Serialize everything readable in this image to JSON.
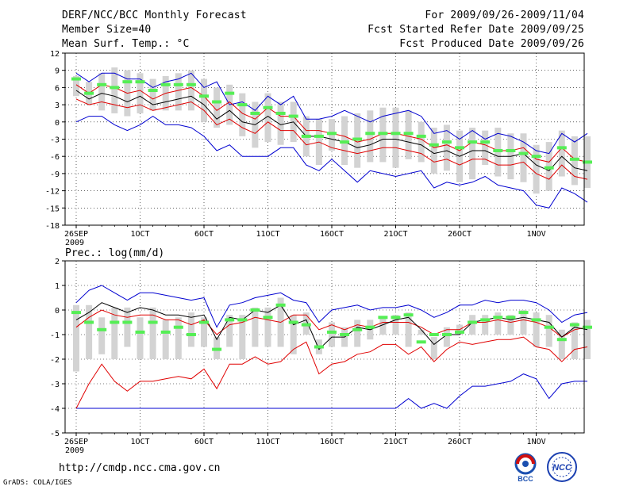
{
  "header": {
    "title": "DERF/NCC/BCC Monthly Forecast",
    "member_size": "Member Size=40",
    "variable": "Mean Surf. Temp.: °C",
    "period": "For 2009/09/26-2009/11/04",
    "started": "Fcst Started Refer Date 2009/09/25",
    "produced": "Fcst Produced Date 2009/09/26"
  },
  "footer": {
    "url": "http://cmdp.ncc.cma.gov.cn",
    "credit": "GrADS: COLA/IGES",
    "logo_bcc": "BCC",
    "logo_ncc": "NCC"
  },
  "colors": {
    "mean": "#000000",
    "spread_red": "#e00000",
    "extreme_blue": "#0000d0",
    "box": "#d3d3d3",
    "median": "#55ee55"
  },
  "chart_data": [
    {
      "type": "line",
      "title": "Mean Surf. Temp.: °C",
      "ylabel": "°C",
      "ylim": [
        -18,
        12
      ],
      "yticks": [
        12,
        9,
        6,
        3,
        0,
        -3,
        -6,
        -9,
        -12,
        -15,
        -18
      ],
      "x_days": 40,
      "xtick_labels": [
        "26SEP",
        "1OCT",
        "6OCT",
        "11OCT",
        "16OCT",
        "21OCT",
        "26OCT",
        "1NOV"
      ],
      "xtick_days": [
        0,
        5,
        10,
        15,
        20,
        25,
        30,
        36
      ],
      "year_label": "2009",
      "grid": true,
      "series": [
        {
          "name": "ensemble-max",
          "color": "blue",
          "values": [
            8.5,
            7.0,
            8.5,
            8.5,
            7.5,
            7.5,
            6.0,
            7.0,
            7.5,
            8.5,
            6.0,
            7.0,
            3.0,
            3.5,
            2.0,
            4.5,
            3.0,
            4.5,
            0.5,
            0.5,
            1.0,
            2.0,
            1.0,
            0.0,
            1.0,
            1.5,
            2.0,
            1.0,
            -2.0,
            -1.5,
            -3.0,
            -1.5,
            -3.0,
            -2.0,
            -2.5,
            -3.5,
            -5.0,
            -5.5,
            -2.0,
            -3.5,
            -2.0
          ]
        },
        {
          "name": "ensemble-min",
          "color": "blue",
          "values": [
            0.0,
            1.0,
            1.0,
            -0.5,
            -1.5,
            -0.5,
            1.0,
            -0.5,
            -0.5,
            -1.0,
            -2.5,
            -5.0,
            -4.0,
            -6.0,
            -6.0,
            -6.0,
            -4.5,
            -4.5,
            -7.5,
            -8.5,
            -6.5,
            -8.5,
            -10.5,
            -8.5,
            -9.0,
            -9.5,
            -9.0,
            -8.5,
            -11.5,
            -10.5,
            -11.0,
            -10.5,
            -9.5,
            -11.0,
            -11.5,
            -12.0,
            -14.5,
            -15.0,
            -11.5,
            -12.5,
            -14.0
          ]
        },
        {
          "name": "spread-upper",
          "color": "red",
          "values": [
            6.5,
            5.0,
            6.5,
            6.0,
            5.0,
            5.5,
            4.0,
            5.0,
            5.5,
            6.0,
            4.5,
            2.0,
            3.5,
            1.5,
            0.5,
            2.5,
            1.0,
            1.0,
            -1.5,
            -1.5,
            -2.0,
            -2.5,
            -3.5,
            -3.0,
            -2.0,
            -2.0,
            -2.5,
            -3.0,
            -4.5,
            -4.0,
            -5.0,
            -3.5,
            -4.0,
            -5.0,
            -5.0,
            -4.5,
            -6.5,
            -7.0,
            -4.5,
            -6.5,
            -7.0
          ]
        },
        {
          "name": "ensemble-mean",
          "color": "black",
          "values": [
            5.5,
            4.0,
            5.0,
            4.5,
            3.5,
            4.5,
            3.0,
            3.5,
            4.0,
            4.5,
            3.0,
            0.5,
            2.0,
            0.0,
            -0.5,
            1.0,
            -0.5,
            0.0,
            -2.5,
            -2.5,
            -3.0,
            -3.5,
            -4.5,
            -4.0,
            -3.0,
            -3.0,
            -3.5,
            -4.0,
            -5.5,
            -5.0,
            -6.0,
            -5.0,
            -5.0,
            -6.0,
            -6.0,
            -5.5,
            -7.5,
            -8.5,
            -6.0,
            -8.0,
            -8.5
          ]
        },
        {
          "name": "spread-lower",
          "color": "red",
          "values": [
            4.0,
            3.0,
            3.5,
            3.0,
            2.5,
            3.0,
            2.0,
            2.5,
            3.0,
            3.5,
            2.0,
            -0.5,
            0.5,
            -1.0,
            -2.0,
            0.0,
            -1.5,
            -1.5,
            -4.0,
            -3.5,
            -4.5,
            -5.0,
            -5.5,
            -5.0,
            -4.5,
            -4.5,
            -5.0,
            -5.5,
            -7.0,
            -6.5,
            -7.5,
            -6.5,
            -6.5,
            -7.5,
            -7.5,
            -7.0,
            -9.0,
            -10.0,
            -7.5,
            -9.5,
            -10.0
          ]
        }
      ],
      "boxes": {
        "top": [
          8.0,
          7.0,
          8.5,
          9.5,
          9.0,
          8.5,
          7.5,
          8.0,
          8.5,
          9.0,
          7.5,
          6.0,
          6.5,
          5.0,
          3.5,
          5.0,
          3.5,
          3.5,
          1.0,
          0.5,
          0.5,
          1.0,
          1.5,
          2.0,
          2.5,
          2.5,
          2.0,
          0.0,
          -1.0,
          -0.5,
          -1.5,
          -1.0,
          -1.5,
          -1.0,
          -2.0,
          -2.0,
          -4.0,
          -3.5,
          -1.5,
          -2.5,
          -2.5
        ],
        "bottom": [
          4.5,
          3.0,
          2.0,
          1.5,
          1.0,
          1.5,
          2.0,
          2.0,
          2.0,
          2.0,
          0.0,
          -1.0,
          -0.5,
          -2.5,
          -4.5,
          -3.5,
          -4.0,
          -3.5,
          -6.0,
          -7.5,
          -5.0,
          -7.5,
          -8.0,
          -7.0,
          -7.0,
          -8.0,
          -6.5,
          -7.0,
          -9.0,
          -8.5,
          -10.5,
          -10.0,
          -7.5,
          -9.5,
          -10.0,
          -10.5,
          -12.5,
          -12.0,
          -9.5,
          -11.0,
          -11.5
        ],
        "median": [
          7.5,
          5.0,
          6.5,
          6.0,
          7.0,
          7.0,
          5.5,
          6.5,
          6.5,
          6.5,
          4.5,
          3.5,
          5.0,
          3.0,
          1.5,
          2.5,
          1.5,
          1.0,
          -2.5,
          -2.5,
          -2.0,
          -3.5,
          -3.0,
          -2.0,
          -2.0,
          -2.0,
          -2.0,
          -2.5,
          -4.0,
          -3.5,
          -4.5,
          -3.5,
          -3.5,
          -5.0,
          -5.0,
          -5.5,
          -6.0,
          -8.0,
          -4.5,
          -6.5,
          -7.0
        ]
      }
    },
    {
      "type": "line",
      "title": "Prec.: log(mm/d)",
      "ylabel": "log(mm/d)",
      "ylim": [
        -5,
        2
      ],
      "yticks": [
        2,
        1,
        0,
        -1,
        -2,
        -3,
        -4,
        -5
      ],
      "x_days": 40,
      "xtick_labels": [
        "26SEP",
        "1OCT",
        "6OCT",
        "11OCT",
        "16OCT",
        "21OCT",
        "26OCT",
        "1NOV"
      ],
      "xtick_days": [
        0,
        5,
        10,
        15,
        20,
        25,
        30,
        36
      ],
      "year_label": "2009",
      "grid": true,
      "series": [
        {
          "name": "ensemble-max",
          "color": "blue",
          "values": [
            0.3,
            0.8,
            1.0,
            0.7,
            0.4,
            0.7,
            0.7,
            0.6,
            0.5,
            0.4,
            0.5,
            -0.7,
            0.2,
            0.3,
            0.5,
            0.6,
            0.7,
            0.4,
            0.3,
            -0.5,
            0.0,
            0.1,
            0.2,
            0.0,
            0.1,
            0.1,
            0.2,
            0.0,
            -0.3,
            -0.1,
            0.2,
            0.2,
            0.4,
            0.3,
            0.4,
            0.4,
            0.3,
            0.0,
            -0.5,
            -0.2,
            -0.1
          ]
        },
        {
          "name": "ensemble-min",
          "color": "blue",
          "values": [
            -4.0,
            -4.0,
            -4.0,
            -4.0,
            -4.0,
            -4.0,
            -4.0,
            -4.0,
            -4.0,
            -4.0,
            -4.0,
            -4.0,
            -4.0,
            -4.0,
            -4.0,
            -4.0,
            -4.0,
            -4.0,
            -4.0,
            -4.0,
            -4.0,
            -4.0,
            -4.0,
            -4.0,
            -4.0,
            -4.0,
            -3.6,
            -4.0,
            -3.8,
            -4.0,
            -3.5,
            -3.1,
            -3.1,
            -3.0,
            -2.9,
            -2.6,
            -2.8,
            -3.6,
            -3.0,
            -2.9,
            -2.9
          ]
        },
        {
          "name": "spread-upper",
          "color": "red",
          "values": [
            -0.7,
            -0.3,
            0.0,
            -0.2,
            -0.3,
            -0.2,
            -0.2,
            -0.4,
            -0.4,
            -0.6,
            -0.4,
            -1.0,
            -0.6,
            -0.5,
            -0.3,
            -0.4,
            -0.5,
            -0.2,
            -0.2,
            -0.8,
            -0.6,
            -0.8,
            -0.6,
            -0.7,
            -0.5,
            -0.5,
            -0.5,
            -0.7,
            -1.0,
            -0.8,
            -0.8,
            -0.5,
            -0.5,
            -0.4,
            -0.5,
            -0.4,
            -0.5,
            -0.7,
            -1.1,
            -0.8,
            -0.7
          ]
        },
        {
          "name": "ensemble-mean",
          "color": "black",
          "values": [
            -0.4,
            -0.1,
            0.3,
            0.1,
            -0.1,
            0.1,
            0.0,
            -0.2,
            -0.2,
            -0.3,
            -0.2,
            -1.2,
            -0.3,
            -0.4,
            0.0,
            -0.1,
            0.2,
            -0.6,
            -0.4,
            -1.6,
            -1.1,
            -1.1,
            -0.7,
            -0.8,
            -0.6,
            -0.4,
            -0.3,
            -0.8,
            -1.4,
            -1.0,
            -1.0,
            -0.5,
            -0.4,
            -0.3,
            -0.4,
            -0.3,
            -0.4,
            -0.5,
            -1.1,
            -0.7,
            -0.8
          ]
        },
        {
          "name": "spread-lower",
          "color": "red",
          "values": [
            -4.0,
            -3.0,
            -2.2,
            -2.9,
            -3.3,
            -2.9,
            -2.9,
            -2.8,
            -2.7,
            -2.8,
            -2.4,
            -3.2,
            -2.2,
            -2.2,
            -1.9,
            -2.2,
            -2.1,
            -1.6,
            -1.3,
            -2.6,
            -2.2,
            -2.1,
            -1.8,
            -1.7,
            -1.4,
            -1.4,
            -1.8,
            -1.5,
            -2.1,
            -1.6,
            -1.3,
            -1.4,
            -1.3,
            -1.2,
            -1.2,
            -1.1,
            -1.5,
            -1.6,
            -2.1,
            -1.6,
            -1.5
          ]
        }
      ],
      "boxes": {
        "top": [
          0.2,
          0.2,
          -0.3,
          0.1,
          0.1,
          -0.3,
          0.1,
          -0.4,
          -0.3,
          -0.1,
          -0.3,
          -1.1,
          -0.2,
          -0.2,
          0.1,
          0.1,
          0.5,
          -0.2,
          -0.1,
          -1.2,
          -0.5,
          -0.7,
          -0.4,
          -0.4,
          -0.3,
          -0.2,
          -0.1,
          -0.8,
          -1.1,
          -0.7,
          -0.6,
          -0.2,
          -0.2,
          -0.1,
          -0.2,
          0.0,
          -0.1,
          -0.2,
          -0.8,
          -0.5,
          -0.4
        ],
        "bottom": [
          -2.5,
          -2.0,
          -1.8,
          -2.0,
          -1.5,
          -2.0,
          -2.0,
          -2.0,
          -2.0,
          -1.5,
          -1.5,
          -2.0,
          -1.5,
          -2.0,
          -1.5,
          -1.5,
          -1.5,
          -1.8,
          -1.0,
          -1.8,
          -1.5,
          -1.5,
          -1.5,
          -1.2,
          -1.0,
          -1.0,
          -1.5,
          -1.0,
          -2.0,
          -1.5,
          -1.0,
          -1.0,
          -1.0,
          -1.0,
          -1.0,
          -1.0,
          -1.5,
          -1.5,
          -2.0,
          -2.0,
          -2.0
        ]
      },
      "medians": [
        -0.1,
        -0.5,
        -0.8,
        -0.5,
        -0.5,
        -0.9,
        -0.5,
        -0.9,
        -0.7,
        -1.0,
        -0.5,
        -1.6,
        -0.4,
        -0.4,
        0.0,
        -0.3,
        0.2,
        -0.5,
        -0.6,
        -1.5,
        -0.9,
        -1.0,
        -0.8,
        -0.7,
        -0.3,
        -0.3,
        -0.2,
        -1.3,
        -1.0,
        -1.0,
        -0.9,
        -0.5,
        -0.4,
        -0.3,
        -0.3,
        -0.1,
        -0.4,
        -0.7,
        -1.2,
        -0.6,
        -0.7
      ]
    }
  ]
}
